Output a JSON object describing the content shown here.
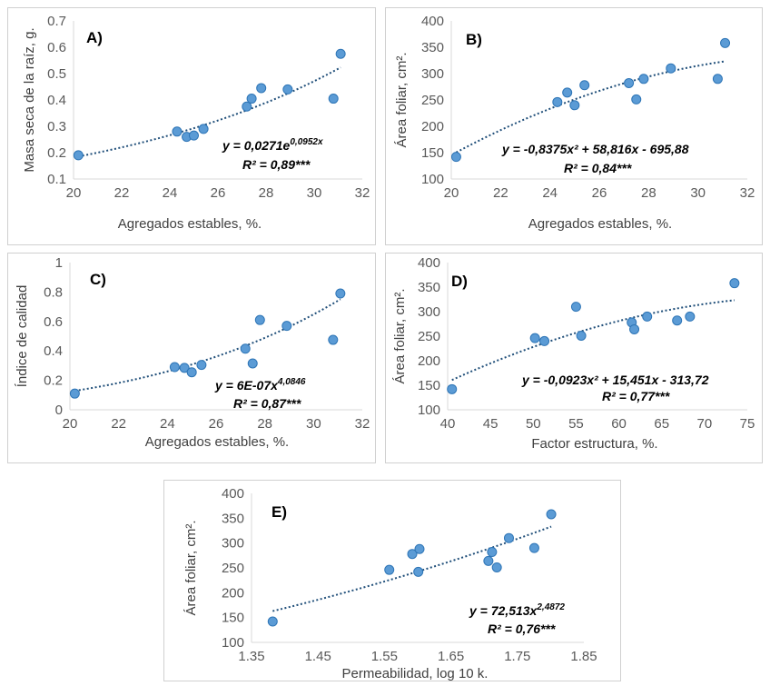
{
  "colors": {
    "point": "#5b9bd5",
    "point_stroke": "#2e75b6",
    "trend": "#1f4e79",
    "axis": "#d9d9d9"
  },
  "chart_data": [
    {
      "id": "A",
      "type": "scatter",
      "panel_label": "A)",
      "xlabel": "Agregados estables, %.",
      "ylabel": "Masa seca de la raíz, g.",
      "xlim": [
        20,
        32
      ],
      "ylim": [
        0.1,
        0.7
      ],
      "xticks": [
        "20",
        "22",
        "24",
        "26",
        "28",
        "30",
        "32"
      ],
      "yticks": [
        "0.1",
        "0.2",
        "0.3",
        "0.4",
        "0.5",
        "0.6",
        "0.7"
      ],
      "x": [
        20.2,
        24.3,
        24.7,
        25.0,
        25.4,
        27.2,
        27.4,
        27.8,
        28.9,
        30.8,
        31.1
      ],
      "y": [
        0.19,
        0.28,
        0.26,
        0.265,
        0.29,
        0.375,
        0.405,
        0.445,
        0.44,
        0.405,
        0.575
      ],
      "trend": {
        "model": "exponential",
        "a": 0.0271,
        "b": 0.0952,
        "x_range": [
          20.2,
          31.1
        ]
      },
      "equation": "y = 0,0271e",
      "equation_exp": "0,0952x",
      "r2": "R² = 0,89***",
      "grid": false
    },
    {
      "id": "B",
      "type": "scatter",
      "panel_label": "B)",
      "xlabel": "Agregados estables, %.",
      "ylabel": "Área foliar, cm².",
      "xlim": [
        20,
        32
      ],
      "ylim": [
        100,
        400
      ],
      "xticks": [
        "20",
        "22",
        "24",
        "26",
        "28",
        "30",
        "32"
      ],
      "yticks": [
        "100",
        "150",
        "200",
        "250",
        "300",
        "350",
        "400"
      ],
      "x": [
        20.2,
        24.3,
        24.7,
        25.0,
        25.4,
        27.2,
        27.5,
        27.8,
        28.9,
        30.8,
        31.1
      ],
      "y": [
        142,
        246,
        264,
        240,
        278,
        282,
        251,
        290,
        310,
        290,
        358
      ],
      "trend": {
        "model": "polynomial",
        "coef": [
          -0.8375,
          58.816,
          -695.88
        ],
        "x_range": [
          20.2,
          31.1
        ]
      },
      "equation": "y = -0,8375x² + 58,816x - 695,88",
      "r2": "R² = 0,84***",
      "grid": false
    },
    {
      "id": "C",
      "type": "scatter",
      "panel_label": "C)",
      "xlabel": "Agregados estables, %.",
      "ylabel": "Índice de calidad",
      "xlim": [
        20,
        32
      ],
      "ylim": [
        0,
        1
      ],
      "xticks": [
        "20",
        "22",
        "24",
        "26",
        "28",
        "30",
        "32"
      ],
      "yticks": [
        "0",
        "0.2",
        "0.4",
        "0.6",
        "0.8",
        "1"
      ],
      "x": [
        20.2,
        24.3,
        24.7,
        25.0,
        25.4,
        27.2,
        27.5,
        27.8,
        28.9,
        30.8,
        31.1
      ],
      "y": [
        0.11,
        0.29,
        0.285,
        0.255,
        0.305,
        0.415,
        0.315,
        0.61,
        0.57,
        0.475,
        0.79
      ],
      "trend": {
        "model": "power",
        "a": 6e-07,
        "b": 4.0846,
        "x_range": [
          20.2,
          31.1
        ]
      },
      "equation": "y = 6E-07x",
      "equation_exp": "4,0846",
      "r2": "R² = 0,87***",
      "grid": false
    },
    {
      "id": "D",
      "type": "scatter",
      "panel_label": "D)",
      "xlabel": "Factor estructura, %.",
      "ylabel": "Área foliar, cm².",
      "xlim": [
        40,
        75
      ],
      "ylim": [
        100,
        400
      ],
      "xticks": [
        "40",
        "45",
        "50",
        "55",
        "60",
        "65",
        "70",
        "75"
      ],
      "yticks": [
        "100",
        "150",
        "200",
        "250",
        "300",
        "350",
        "400"
      ],
      "x": [
        40.5,
        50.2,
        51.3,
        55.0,
        55.6,
        61.5,
        61.8,
        63.3,
        66.8,
        68.3,
        73.5
      ],
      "y": [
        142,
        246,
        240,
        310,
        251,
        278,
        264,
        290,
        282,
        290,
        358
      ],
      "trend": {
        "model": "polynomial",
        "coef": [
          -0.0923,
          15.451,
          -313.72
        ],
        "x_range": [
          40.5,
          73.5
        ]
      },
      "equation": "y = -0,0923x² + 15,451x - 313,72",
      "r2": "R² = 0,77***",
      "grid": false
    },
    {
      "id": "E",
      "type": "scatter",
      "panel_label": "E)",
      "xlabel": "Permeabilidad, log 10 k.",
      "ylabel": "Área foliar, cm².",
      "xlim": [
        1.35,
        1.9
      ],
      "ylim": [
        100,
        400
      ],
      "xticks": [
        "1.35",
        "1.45",
        "1.55",
        "1.65",
        "1.75",
        "1.85"
      ],
      "yticks": [
        "100",
        "150",
        "200",
        "250",
        "300",
        "350",
        "400"
      ],
      "x": [
        1.385,
        1.578,
        1.616,
        1.626,
        1.628,
        1.742,
        1.748,
        1.756,
        1.776,
        1.818,
        1.846
      ],
      "y": [
        142,
        246,
        278,
        242,
        288,
        264,
        282,
        251,
        310,
        290,
        358
      ],
      "trend": {
        "model": "power",
        "a": 72.513,
        "b": 2.4872,
        "x_range": [
          1.385,
          1.846
        ]
      },
      "equation": "y = 72,513x",
      "equation_exp": "2,4872",
      "r2": "R² = 0,76***",
      "grid": false
    }
  ]
}
